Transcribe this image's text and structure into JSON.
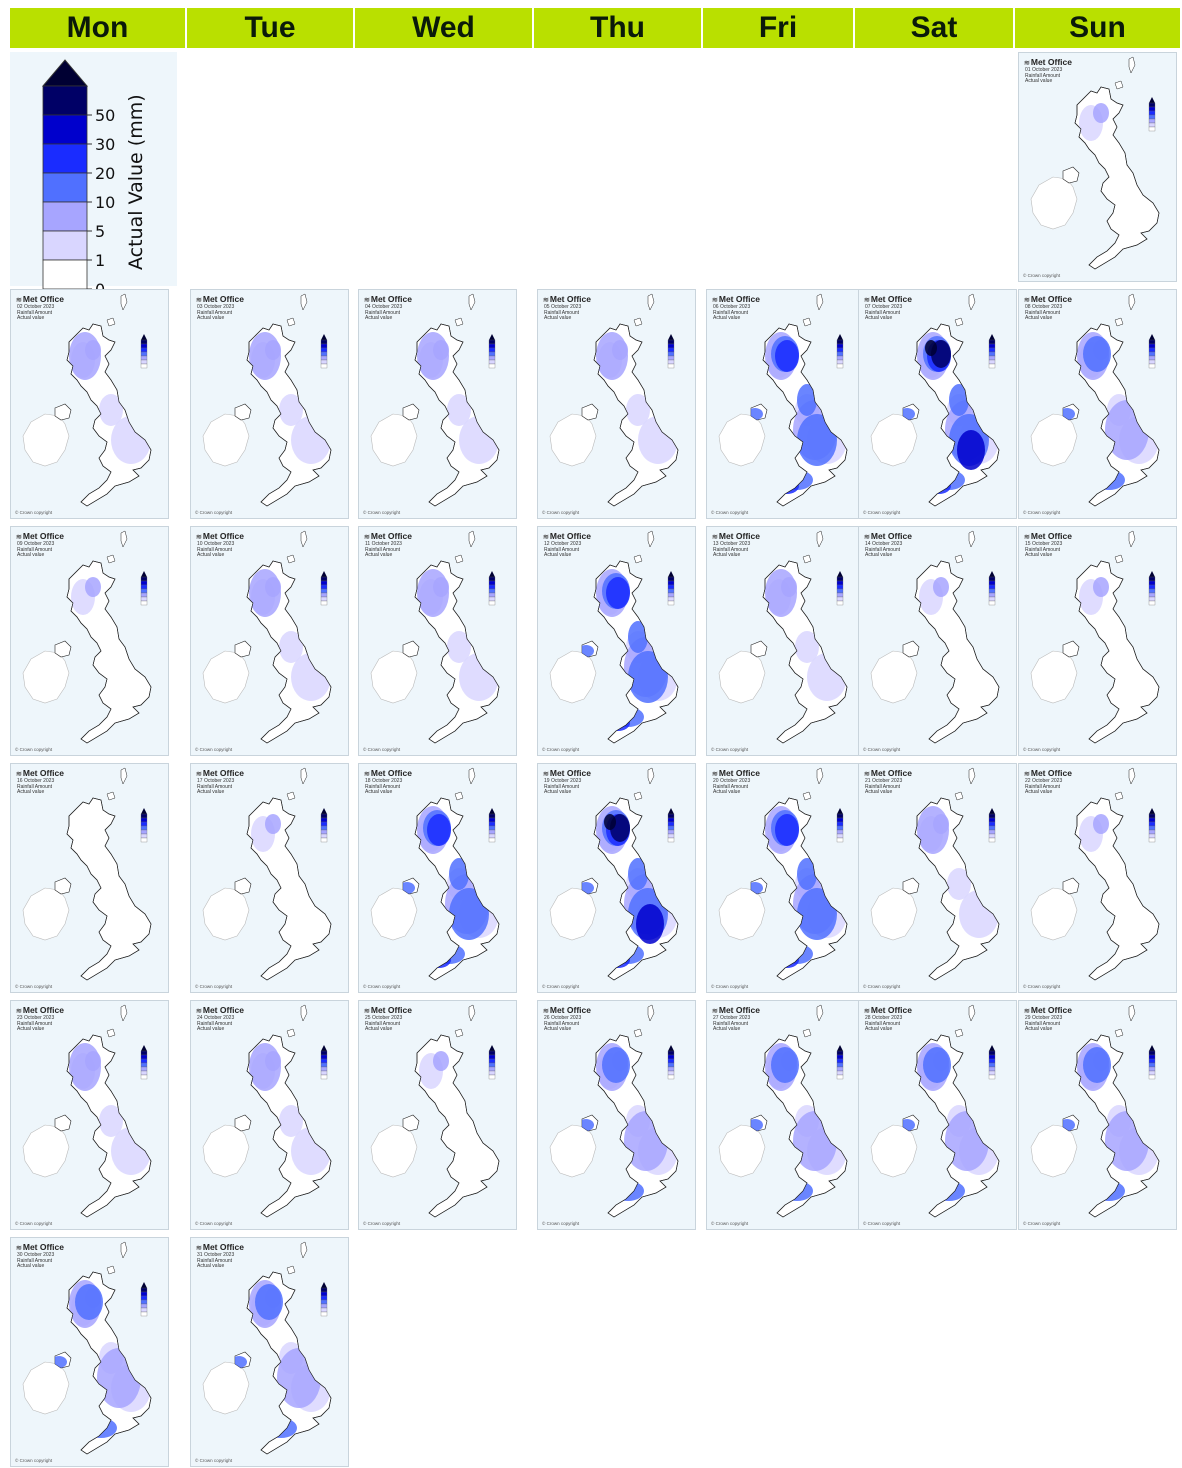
{
  "days": [
    "Mon",
    "Tue",
    "Wed",
    "Thu",
    "Fri",
    "Sat",
    "Sun"
  ],
  "legend": {
    "axis_label": "Actual Value (mm)",
    "ticks": [
      "0",
      "1",
      "5",
      "10",
      "20",
      "30",
      "50"
    ],
    "colors": [
      "#ffffff",
      "#d9d6ff",
      "#a7a5ff",
      "#5070ff",
      "#1a2cff",
      "#0000cc",
      "#000066",
      "#000033"
    ]
  },
  "map_logo": "Met Office",
  "map_subtitle": "Rainfall Amount",
  "map_value_label": "Actual value",
  "map_copyright": "© Crown copyright",
  "month_label": "October 2023",
  "maps": [
    {
      "date": "01 October 2023",
      "rain": 1
    },
    {
      "date": "02 October 2023",
      "rain": 2
    },
    {
      "date": "03 October 2023",
      "rain": 2
    },
    {
      "date": "04 October 2023",
      "rain": 2
    },
    {
      "date": "05 October 2023",
      "rain": 2
    },
    {
      "date": "06 October 2023",
      "rain": 4
    },
    {
      "date": "07 October 2023",
      "rain": 5
    },
    {
      "date": "08 October 2023",
      "rain": 3
    },
    {
      "date": "09 October 2023",
      "rain": 1
    },
    {
      "date": "10 October 2023",
      "rain": 2
    },
    {
      "date": "11 October 2023",
      "rain": 2
    },
    {
      "date": "12 October 2023",
      "rain": 4
    },
    {
      "date": "13 October 2023",
      "rain": 2
    },
    {
      "date": "14 October 2023",
      "rain": 1
    },
    {
      "date": "15 October 2023",
      "rain": 1
    },
    {
      "date": "16 October 2023",
      "rain": 0
    },
    {
      "date": "17 October 2023",
      "rain": 1
    },
    {
      "date": "18 October 2023",
      "rain": 4
    },
    {
      "date": "19 October 2023",
      "rain": 5
    },
    {
      "date": "20 October 2023",
      "rain": 4
    },
    {
      "date": "21 October 2023",
      "rain": 2
    },
    {
      "date": "22 October 2023",
      "rain": 1
    },
    {
      "date": "23 October 2023",
      "rain": 2
    },
    {
      "date": "24 October 2023",
      "rain": 2
    },
    {
      "date": "25 October 2023",
      "rain": 1
    },
    {
      "date": "26 October 2023",
      "rain": 3
    },
    {
      "date": "27 October 2023",
      "rain": 3
    },
    {
      "date": "28 October 2023",
      "rain": 3
    },
    {
      "date": "29 October 2023",
      "rain": 3
    },
    {
      "date": "30 October 2023",
      "rain": 3
    },
    {
      "date": "31 October 2023",
      "rain": 3
    }
  ]
}
